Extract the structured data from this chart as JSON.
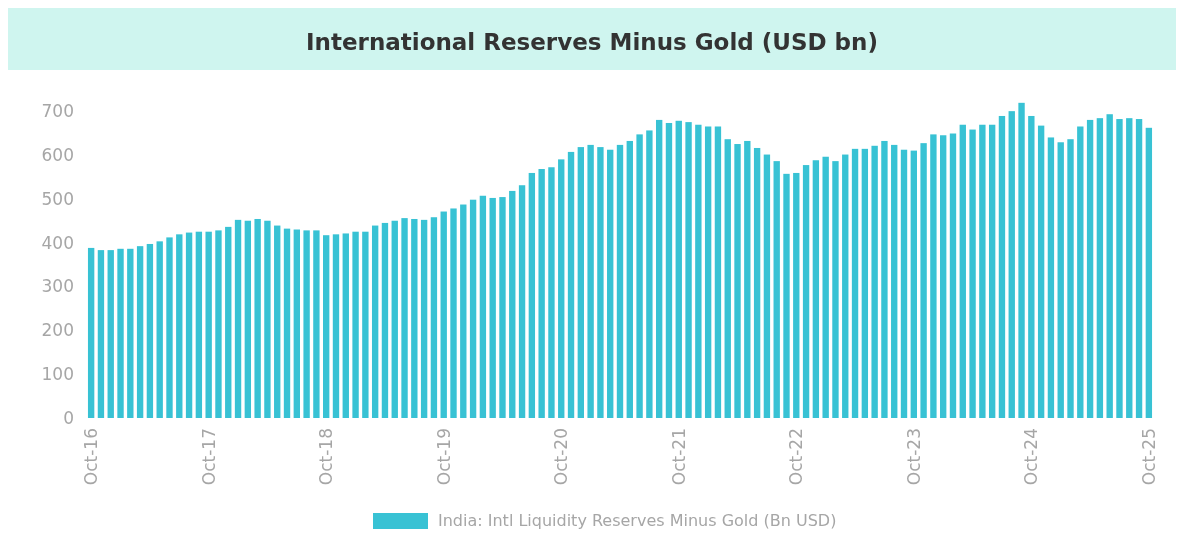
{
  "chart_data": {
    "type": "bar",
    "title": "International Reserves Minus Gold (USD bn)",
    "categories": [
      "Oct-16",
      null,
      null,
      null,
      null,
      null,
      null,
      null,
      null,
      null,
      null,
      null,
      "Oct-17",
      null,
      null,
      null,
      null,
      null,
      null,
      null,
      null,
      null,
      null,
      null,
      "Oct-18",
      null,
      null,
      null,
      null,
      null,
      null,
      null,
      null,
      null,
      null,
      null,
      "Oct-19",
      null,
      null,
      null,
      null,
      null,
      null,
      null,
      null,
      null,
      null,
      null,
      "Oct-20",
      null,
      null,
      null,
      null,
      null,
      null,
      null,
      null,
      null,
      null,
      null,
      "Oct-21",
      null,
      null,
      null,
      null,
      null,
      null,
      null,
      null,
      null,
      null,
      null,
      "Oct-22",
      null,
      null,
      null,
      null,
      null,
      null,
      null,
      null,
      null,
      null,
      null,
      "Oct-23",
      null,
      null,
      null,
      null,
      null,
      null,
      null,
      null,
      null,
      null,
      null,
      "Oct-24",
      null,
      null,
      null,
      null,
      null,
      null,
      null,
      null,
      null,
      null,
      null,
      "Oct-25"
    ],
    "series": [
      {
        "name": "India: Intl Liquidity Reserves Minus Gold (Bn USD)",
        "color": "#38c2d4",
        "values": [
          388,
          383,
          383,
          386,
          386,
          392,
          397,
          403,
          412,
          419,
          423,
          425,
          425,
          428,
          436,
          452,
          450,
          454,
          450,
          439,
          432,
          430,
          428,
          428,
          417,
          419,
          421,
          425,
          425,
          439,
          445,
          450,
          456,
          454,
          452,
          458,
          471,
          478,
          487,
          498,
          507,
          502,
          504,
          518,
          531,
          559,
          568,
          572,
          590,
          607,
          618,
          623,
          618,
          612,
          623,
          632,
          647,
          656,
          680,
          673,
          678,
          675,
          669,
          665,
          665,
          636,
          625,
          632,
          616,
          601,
          586,
          557,
          559,
          577,
          588,
          596,
          586,
          601,
          614,
          614,
          621,
          632,
          623,
          612,
          610,
          627,
          647,
          645,
          649,
          669,
          658,
          669,
          669,
          689,
          700,
          719,
          689,
          667,
          640,
          629,
          636,
          665,
          680,
          684,
          693,
          682,
          684,
          682,
          662
        ]
      }
    ],
    "ylim": [
      0,
      730
    ],
    "yticks": [
      0,
      100,
      200,
      300,
      400,
      500,
      600,
      700
    ],
    "grid": false,
    "legend": "bottom"
  }
}
